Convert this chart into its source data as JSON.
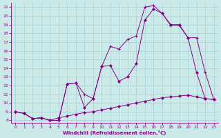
{
  "xlabel": "Windchill (Refroidissement éolien,°C)",
  "background_color": "#cbe9e9",
  "grid_color": "#aad4d4",
  "line_color": "#880088",
  "xlim_min": -0.5,
  "xlim_max": 23.5,
  "ylim_min": 7.7,
  "ylim_max": 21.5,
  "xticks": [
    0,
    1,
    2,
    3,
    4,
    5,
    6,
    7,
    8,
    9,
    10,
    11,
    12,
    13,
    14,
    15,
    16,
    17,
    18,
    19,
    20,
    21,
    22,
    23
  ],
  "yticks": [
    8,
    9,
    10,
    11,
    12,
    13,
    14,
    15,
    16,
    17,
    18,
    19,
    20,
    21
  ],
  "curve1_x": [
    0,
    1,
    2,
    3,
    4,
    5,
    6,
    7,
    8,
    9,
    10,
    11,
    12,
    13,
    14,
    15,
    16,
    17,
    18,
    19,
    20,
    21,
    22,
    23
  ],
  "curve1_y": [
    9.0,
    8.8,
    8.2,
    8.3,
    8.0,
    8.3,
    8.5,
    8.7,
    8.9,
    9.0,
    9.2,
    9.4,
    9.6,
    9.8,
    10.0,
    10.2,
    10.4,
    10.6,
    10.7,
    10.8,
    10.9,
    10.7,
    10.5,
    10.4
  ],
  "curve2_x": [
    0,
    1,
    2,
    3,
    4,
    5,
    6,
    7,
    8,
    9,
    10,
    11,
    12,
    13,
    14,
    15,
    16,
    17,
    18,
    19,
    20,
    21,
    22,
    23
  ],
  "curve2_y": [
    9.0,
    8.8,
    8.2,
    8.3,
    8.0,
    8.0,
    12.2,
    12.3,
    11.0,
    10.5,
    14.2,
    16.5,
    16.2,
    17.3,
    17.7,
    21.0,
    21.2,
    20.3,
    18.9,
    18.9,
    17.5,
    17.5,
    13.5,
    10.4
  ],
  "curve3_x": [
    0,
    1,
    2,
    3,
    4,
    5,
    6,
    7,
    8,
    9,
    10,
    11,
    12,
    13,
    14,
    15,
    16,
    17,
    18,
    19,
    20,
    21,
    22,
    23
  ],
  "curve3_y": [
    9.0,
    8.8,
    8.2,
    8.3,
    8.0,
    8.0,
    12.2,
    12.3,
    9.5,
    10.5,
    14.2,
    14.3,
    12.5,
    13.0,
    14.5,
    19.5,
    20.8,
    20.3,
    19.0,
    19.0,
    17.5,
    13.5,
    10.5,
    10.4
  ]
}
